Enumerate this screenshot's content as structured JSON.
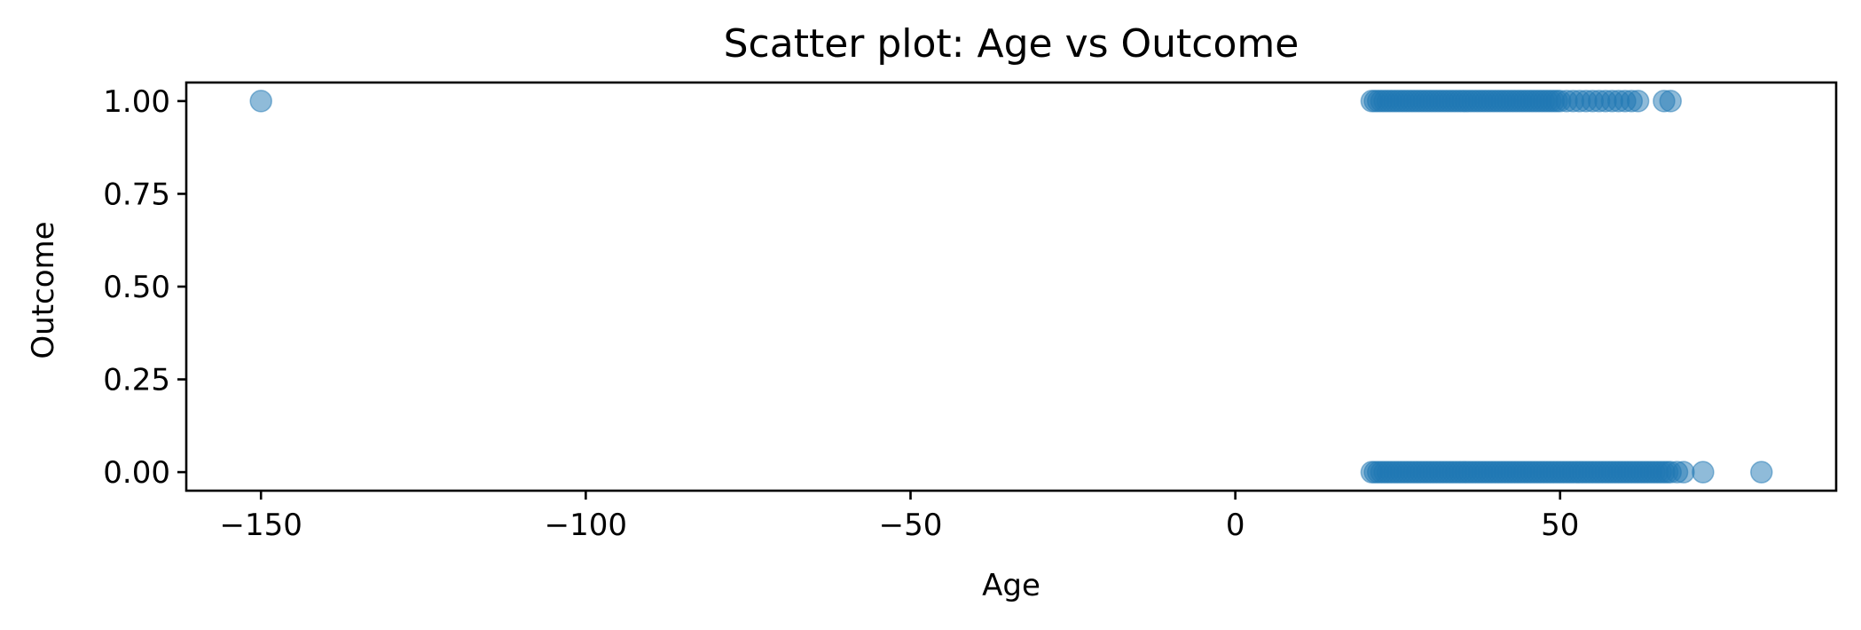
{
  "chart_data": {
    "type": "scatter",
    "title": "Scatter plot: Age vs Outcome",
    "xlabel": "Age",
    "ylabel": "Outcome",
    "xlim": [
      -161.5,
      92.5
    ],
    "ylim": [
      -0.05,
      1.05
    ],
    "xticks": [
      -150,
      -100,
      -50,
      0,
      50
    ],
    "xtick_labels": [
      "−150",
      "−100",
      "−50",
      "0",
      "50"
    ],
    "yticks": [
      0.0,
      0.25,
      0.5,
      0.75,
      1.0
    ],
    "ytick_labels": [
      "0.00",
      "0.25",
      "0.50",
      "0.75",
      "1.00"
    ],
    "grid": false,
    "point_color": "#1f77b4",
    "point_alpha": 0.5,
    "series": [
      {
        "x": [
          -150,
          21,
          21.5,
          22,
          22.5,
          23,
          23.5,
          24,
          24.5,
          25,
          25.5,
          26,
          26.5,
          27,
          27.5,
          28,
          28.5,
          29,
          29.5,
          30,
          30.5,
          31,
          31.5,
          32,
          32.5,
          33,
          33.5,
          34,
          34.5,
          35,
          35.5,
          36,
          36.5,
          37,
          37.5,
          38,
          38.5,
          39,
          39.5,
          40,
          40.5,
          41,
          41.5,
          42,
          42.5,
          43,
          43.5,
          44,
          44.5,
          45,
          45.5,
          46,
          46.5,
          47,
          47.5,
          48,
          48.5,
          49,
          49.5,
          50,
          51,
          52,
          53,
          54,
          55,
          56,
          57,
          58,
          59,
          60,
          61,
          62,
          66,
          67
        ],
        "y": [
          1,
          1,
          1,
          1,
          1,
          1,
          1,
          1,
          1,
          1,
          1,
          1,
          1,
          1,
          1,
          1,
          1,
          1,
          1,
          1,
          1,
          1,
          1,
          1,
          1,
          1,
          1,
          1,
          1,
          1,
          1,
          1,
          1,
          1,
          1,
          1,
          1,
          1,
          1,
          1,
          1,
          1,
          1,
          1,
          1,
          1,
          1,
          1,
          1,
          1,
          1,
          1,
          1,
          1,
          1,
          1,
          1,
          1,
          1,
          1,
          1,
          1,
          1,
          1,
          1,
          1,
          1,
          1,
          1,
          1,
          1,
          1,
          1,
          1
        ]
      },
      {
        "x": [
          21,
          21.5,
          22,
          22.5,
          23,
          23.5,
          24,
          24.5,
          25,
          25.5,
          26,
          26.5,
          27,
          27.5,
          28,
          28.5,
          29,
          29.5,
          30,
          30.5,
          31,
          31.5,
          32,
          32.5,
          33,
          33.5,
          34,
          34.5,
          35,
          35.5,
          36,
          36.5,
          37,
          37.5,
          38,
          38.5,
          39,
          39.5,
          40,
          40.5,
          41,
          41.5,
          42,
          42.5,
          43,
          43.5,
          44,
          44.5,
          45,
          45.5,
          46,
          46.5,
          47,
          47.5,
          48,
          48.5,
          49,
          49.5,
          50,
          50.5,
          51,
          51.5,
          52,
          52.5,
          53,
          53.5,
          54,
          54.5,
          55,
          55.5,
          56,
          56.5,
          57,
          57.5,
          58,
          58.5,
          59,
          59.5,
          60,
          60.5,
          61,
          61.5,
          62,
          62.5,
          63,
          63.5,
          64,
          64.5,
          65,
          65.5,
          66,
          66.5,
          67,
          68,
          69,
          72,
          81
        ],
        "y": [
          0,
          0,
          0,
          0,
          0,
          0,
          0,
          0,
          0,
          0,
          0,
          0,
          0,
          0,
          0,
          0,
          0,
          0,
          0,
          0,
          0,
          0,
          0,
          0,
          0,
          0,
          0,
          0,
          0,
          0,
          0,
          0,
          0,
          0,
          0,
          0,
          0,
          0,
          0,
          0,
          0,
          0,
          0,
          0,
          0,
          0,
          0,
          0,
          0,
          0,
          0,
          0,
          0,
          0,
          0,
          0,
          0,
          0,
          0,
          0,
          0,
          0,
          0,
          0,
          0,
          0,
          0,
          0,
          0,
          0,
          0,
          0,
          0,
          0,
          0,
          0,
          0,
          0,
          0,
          0,
          0,
          0,
          0,
          0,
          0,
          0,
          0,
          0,
          0,
          0,
          0,
          0,
          0,
          0,
          0,
          0,
          0
        ]
      }
    ]
  }
}
